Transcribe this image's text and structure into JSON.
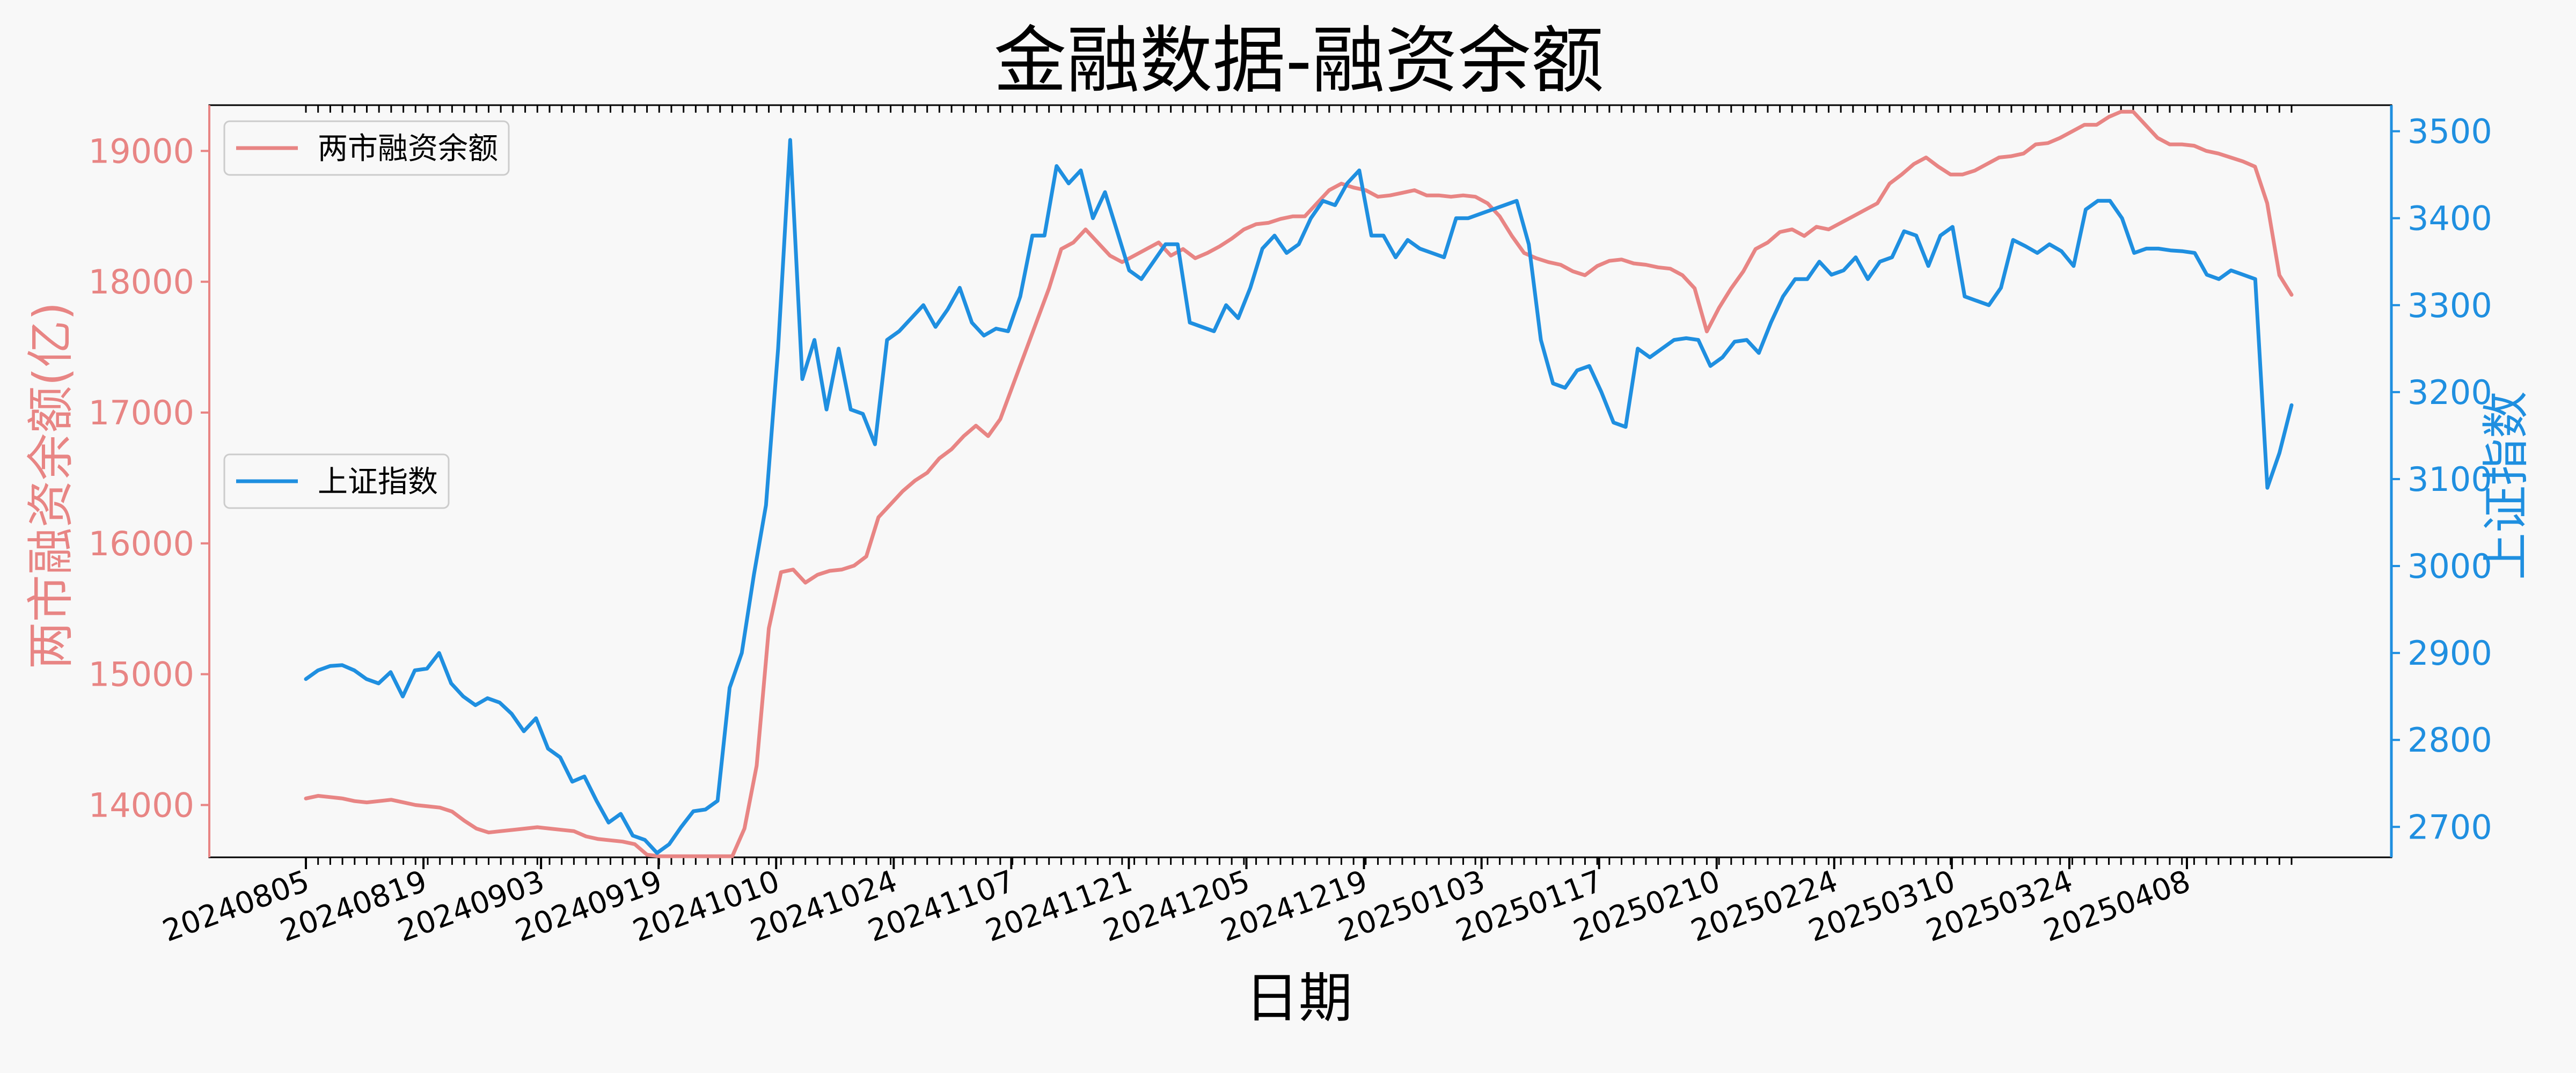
{
  "chart_data": {
    "type": "line",
    "title": "金融数据-融资余额",
    "xlabel": "日期",
    "x_ticks": [
      "20240805",
      "20240819",
      "20240903",
      "20240919",
      "20241010",
      "20241024",
      "20241107",
      "20241121",
      "20241205",
      "20241219",
      "20250103",
      "20250117",
      "20250210",
      "20250224",
      "20250310",
      "20250324",
      "20250408"
    ],
    "left_axis": {
      "label": "两市融资余额(亿)",
      "ylim": [
        13600,
        19350
      ],
      "ticks": [
        14000,
        15000,
        16000,
        17000,
        18000,
        19000
      ],
      "color": "#e88584"
    },
    "right_axis": {
      "label": "上证指数",
      "ylim": [
        2665,
        3530
      ],
      "ticks": [
        2700,
        2800,
        2900,
        3000,
        3100,
        3200,
        3300,
        3400,
        3500
      ],
      "color": "#1f8fe0"
    },
    "legends": [
      {
        "label": "两市融资余额",
        "position": "upper-left"
      },
      {
        "label": "上证指数",
        "position": "center-left"
      }
    ],
    "series": [
      {
        "name": "两市融资余额",
        "axis": "left",
        "color": "#e88584",
        "values": [
          14050,
          14070,
          14060,
          14050,
          14030,
          14020,
          14030,
          14040,
          14020,
          14000,
          13990,
          13980,
          13950,
          13880,
          13820,
          13790,
          13800,
          13810,
          13820,
          13830,
          13820,
          13810,
          13800,
          13760,
          13740,
          13730,
          13720,
          13700,
          13620,
          13600,
          13600,
          13600,
          13600,
          13600,
          13600,
          13600,
          13820,
          14300,
          15350,
          15780,
          15800,
          15700,
          15760,
          15790,
          15800,
          15830,
          15900,
          16200,
          16300,
          16400,
          16480,
          16540,
          16650,
          16720,
          16820,
          16900,
          16820,
          16950,
          17200,
          17450,
          17700,
          17950,
          18250,
          18300,
          18400,
          18300,
          18200,
          18150,
          18200,
          18250,
          18300,
          18200,
          18250,
          18180,
          18220,
          18270,
          18330,
          18400,
          18440,
          18450,
          18480,
          18500,
          18500,
          18600,
          18700,
          18750,
          18720,
          18700,
          18650,
          18660,
          18680,
          18700,
          18660,
          18660,
          18650,
          18660,
          18650,
          18600,
          18500,
          18350,
          18220,
          18180,
          18150,
          18130,
          18080,
          18050,
          18120,
          18160,
          18170,
          18140,
          18130,
          18110,
          18100,
          18050,
          17950,
          17620,
          17800,
          17950,
          18080,
          18250,
          18300,
          18380,
          18400,
          18350,
          18420,
          18400,
          18450,
          18500,
          18550,
          18600,
          18750,
          18820,
          18900,
          18950,
          18880,
          18820,
          18820,
          18850,
          18900,
          18950,
          18960,
          18980,
          19050,
          19060,
          19100,
          19150,
          19200,
          19200,
          19260,
          19300,
          19300,
          19200,
          19100,
          19050,
          19050,
          19040,
          19000,
          18980,
          18950,
          18920,
          18880,
          18600,
          18050,
          17900
        ],
        "y_note": "values clipped at lower axis edge ~13600 in Sep-Oct 2024"
      },
      {
        "name": "上证指数",
        "axis": "right",
        "color": "#1f8fe0",
        "values": [
          2870,
          2880,
          2885,
          2886,
          2880,
          2870,
          2865,
          2878,
          2850,
          2880,
          2882,
          2900,
          2865,
          2850,
          2840,
          2848,
          2843,
          2830,
          2810,
          2825,
          2790,
          2780,
          2752,
          2758,
          2730,
          2705,
          2715,
          2690,
          2685,
          2670,
          2680,
          2700,
          2718,
          2720,
          2730,
          2860,
          2900,
          2990,
          3070,
          3250,
          3490,
          3215,
          3260,
          3180,
          3250,
          3180,
          3175,
          3140,
          3260,
          3270,
          3285,
          3300,
          3275,
          3295,
          3320,
          3280,
          3265,
          3273,
          3270,
          3310,
          3380,
          3380,
          3460,
          3440,
          3455,
          3400,
          3430,
          3385,
          3340,
          3330,
          3350,
          3370,
          3370,
          3280,
          3275,
          3270,
          3300,
          3285,
          3320,
          3365,
          3380,
          3360,
          3370,
          3400,
          3420,
          3415,
          3440,
          3455,
          3380,
          3380,
          3355,
          3375,
          3365,
          3360,
          3355,
          3400,
          3400,
          3405,
          3410,
          3415,
          3420,
          3370,
          3260,
          3210,
          3205,
          3225,
          3230,
          3200,
          3165,
          3160,
          3250,
          3240,
          3250,
          3260,
          3262,
          3260,
          3230,
          3240,
          3258,
          3260,
          3245,
          3280,
          3310,
          3330,
          3330,
          3350,
          3335,
          3340,
          3355,
          3330,
          3350,
          3355,
          3385,
          3380,
          3345,
          3380,
          3390,
          3310,
          3305,
          3300,
          3320,
          3375,
          3368,
          3360,
          3370,
          3362,
          3345,
          3410,
          3420,
          3420,
          3400,
          3360,
          3365,
          3365,
          3363,
          3362,
          3360,
          3335,
          3330,
          3340,
          3335,
          3330,
          3090,
          3130,
          3185
        ]
      }
    ],
    "grid": false
  }
}
